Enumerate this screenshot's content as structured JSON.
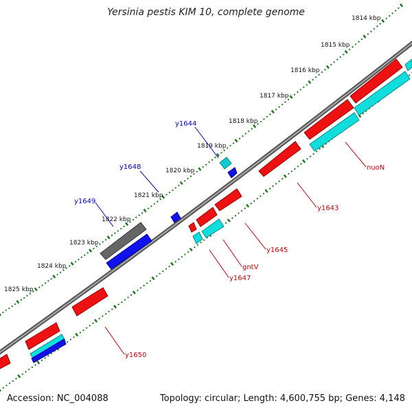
{
  "title": "Yersinia pestis KIM 10, complete genome",
  "footer": {
    "accession": "Accession: NC_004088",
    "summary": "Topology: circular; Length: 4,600,755 bp; Genes: 4,148"
  },
  "colors": {
    "backbone": "#888888",
    "tick": "#1a7a1a",
    "gene_red": "#ee1111",
    "gene_cyan": "#11dddd",
    "gene_blue": "#1111ee",
    "gene_gray": "#666666",
    "label_red": "#cc0000",
    "label_blue": "#0000cc"
  },
  "kbp_labels": [
    "1814 kbp",
    "1815 kbp",
    "1816 kbp",
    "1817 kbp",
    "1818 kbp",
    "1819 kbp",
    "1820 kbp",
    "1821 kbp",
    "1822 kbp",
    "1823 kbp",
    "1824 kbp",
    "1825 kbp"
  ],
  "genes_upper": [
    {
      "label": "y1644",
      "color": "blue"
    },
    {
      "label": "y1648",
      "color": "blue"
    },
    {
      "label": "y1649",
      "color": "blue"
    }
  ],
  "genes_lower": [
    {
      "label": "nuoN",
      "color": "red"
    },
    {
      "label": "y1643",
      "color": "red"
    },
    {
      "label": "y1645",
      "color": "red"
    },
    {
      "label": "gntV",
      "color": "red"
    },
    {
      "label": "y1647",
      "color": "red"
    },
    {
      "label": "y1650",
      "color": "red"
    }
  ]
}
